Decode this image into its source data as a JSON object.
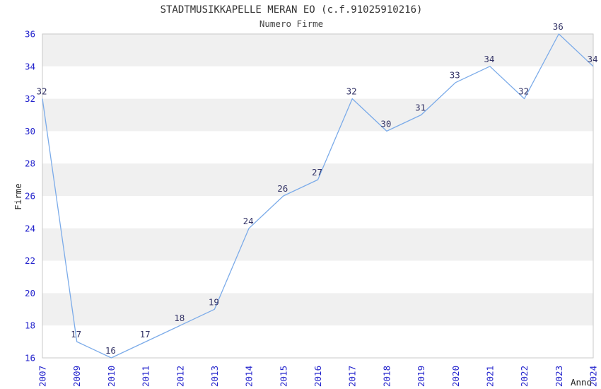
{
  "chart_data": {
    "type": "line",
    "title": "STADTMUSIKKAPELLE MERAN EO (c.f.91025910216)",
    "subtitle": "Numero Firme",
    "xlabel": "Anno",
    "ylabel": "Firme",
    "categories": [
      "2007",
      "2009",
      "2010",
      "2011",
      "2012",
      "2013",
      "2014",
      "2015",
      "2016",
      "2017",
      "2018",
      "2019",
      "2020",
      "2021",
      "2022",
      "2023",
      "2024"
    ],
    "values": [
      32,
      17,
      16,
      17,
      18,
      19,
      24,
      26,
      27,
      32,
      30,
      31,
      33,
      34,
      32,
      36,
      34
    ],
    "ylim": [
      16,
      36
    ],
    "ytick_step": 2,
    "grid": "alternating-horizontal-bands",
    "legend": "none",
    "data_labels": "on",
    "colors": {
      "line": "#7babe9",
      "tick_label": "#2222cc",
      "data_label": "#333366",
      "band": "#f0f0f0",
      "plot_border": "#c9c9c9",
      "title": "#333333",
      "subtitle": "#444444",
      "axis_title": "#222222",
      "background": "#ffffff"
    }
  }
}
